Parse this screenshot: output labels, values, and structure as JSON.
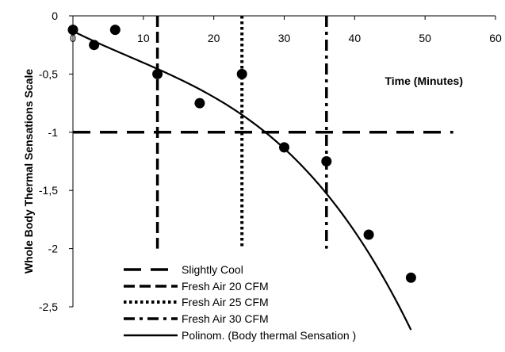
{
  "chart_data": {
    "type": "scatter",
    "title": "",
    "xlabel": "Time (Minutes)",
    "ylabel": "Whole Body Thermal Sensations Scale",
    "xlim": [
      0,
      60
    ],
    "ylim": [
      -2.5,
      0
    ],
    "x_ticks": [
      0,
      10,
      20,
      30,
      40,
      50,
      60
    ],
    "x_tick_labels": [
      "0",
      "10",
      "20",
      "30",
      "40",
      "50",
      "60"
    ],
    "y_ticks": [
      0,
      -0.5,
      -1,
      -1.5,
      -2,
      -2.5
    ],
    "y_tick_labels": [
      "0",
      "-0,5",
      "-1",
      "-1,5",
      "-2",
      "-2,5"
    ],
    "grid": false,
    "legend_position": "bottom-left",
    "series": [
      {
        "kind": "points",
        "x": [
          0,
          3,
          6,
          12,
          18,
          24,
          30,
          36,
          42,
          48
        ],
        "y": [
          -0.12,
          -0.25,
          -0.12,
          -0.5,
          -0.75,
          -0.5,
          -1.13,
          -1.25,
          -1.88,
          -2.25
        ]
      },
      {
        "kind": "hline",
        "name": "Slightly Cool",
        "y": -1,
        "x_range": [
          0,
          54
        ],
        "dash": "long"
      },
      {
        "kind": "vline",
        "name": "Fresh Air 20 CFM",
        "x": 12,
        "dash": "medium"
      },
      {
        "kind": "vline",
        "name": "Fresh Air 25 CFM",
        "x": 24,
        "dash": "dot"
      },
      {
        "kind": "vline",
        "name": "Fresh Air 30 CFM",
        "x": 36,
        "dash": "dashdot"
      },
      {
        "kind": "trend",
        "name": "Polinom. (Body thermal Sensation )",
        "x_range": [
          0,
          48
        ],
        "coefficients": [
          -0.1317,
          -0.02998,
          0.0004932,
          -2.047e-05
        ]
      }
    ]
  }
}
